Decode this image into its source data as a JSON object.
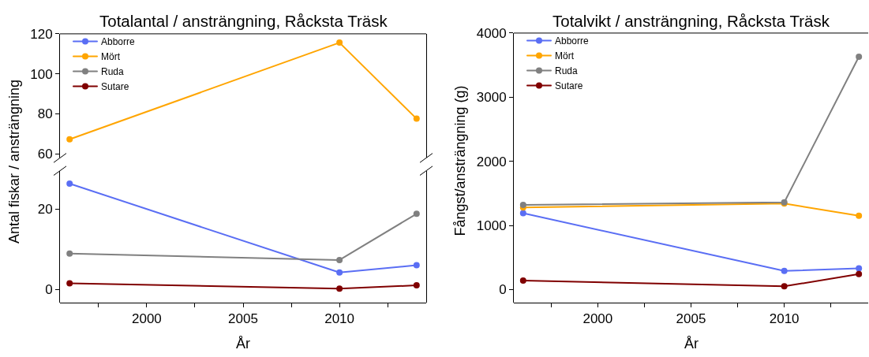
{
  "chart_data": [
    {
      "type": "line",
      "title": "Totalantal / ansträngning, Råcksta Träsk",
      "ylabel": "Antal fiskar / ansträngning",
      "x": [
        1996,
        2010,
        2014
      ],
      "series": [
        {
          "name": "Abborre",
          "color": "#5a6ef4",
          "values": [
            null,
            null,
            null
          ]
        },
        {
          "name": "Mört",
          "color": "#ffa500",
          "values": [
            67.3,
            115.6,
            77.6
          ]
        },
        {
          "name": "Ruda",
          "color": "#808080",
          "values": [
            null,
            null,
            null
          ]
        },
        {
          "name": "Sutare",
          "color": "#800000",
          "values": [
            null,
            null,
            null
          ]
        }
      ],
      "xlim": [
        1995.5,
        2014.5
      ],
      "ylim": [
        58,
        120
      ],
      "yticks": [
        60,
        80,
        100,
        120
      ],
      "tick_labels": "y",
      "legend": "top left",
      "marker": "circle",
      "line_style": "solid"
    },
    {
      "type": "line",
      "xlabel": "År",
      "x": [
        1996,
        2010,
        2014
      ],
      "series": [
        {
          "color": "#5a6ef4",
          "values": [
            26.3,
            4.2,
            6.0
          ]
        },
        {
          "color": "#808080",
          "values": [
            8.9,
            7.3,
            18.8
          ]
        },
        {
          "color": "#800000",
          "values": [
            1.5,
            0.2,
            1.0
          ]
        }
      ],
      "xlim": [
        1995.5,
        2014.5
      ],
      "xticks": [
        {
          "value": 1997.5,
          "label": null
        },
        2000,
        {
          "value": 2002.5,
          "label": null
        },
        2005,
        {
          "value": 2007.5,
          "label": null
        },
        2010,
        {
          "value": 2012.5,
          "label": null
        }
      ],
      "ylim": [
        -3.3,
        29.5
      ],
      "yticks": [
        0,
        20
      ],
      "marker": "circle",
      "line_style": "solid"
    },
    {
      "type": "line",
      "title": "Totalvikt / ansträngning, Råcksta Träsk",
      "xlabel": "År",
      "ylabel": "Fångst/ansträngning (g)",
      "x": [
        1996,
        2010,
        2014
      ],
      "series": [
        {
          "name": "Abborre",
          "color": "#5a6ef4",
          "values": [
            1190,
            290,
            330
          ]
        },
        {
          "name": "Mört",
          "color": "#ffa500",
          "values": [
            1280,
            1340,
            1150
          ]
        },
        {
          "name": "Ruda",
          "color": "#808080",
          "values": [
            1320,
            1360,
            3630
          ]
        },
        {
          "name": "Sutare",
          "color": "#800000",
          "values": [
            140,
            50,
            240
          ]
        }
      ],
      "xlim": [
        1995.5,
        2014.5
      ],
      "xticks": [
        {
          "value": 1997.5,
          "label": null
        },
        2000,
        {
          "value": 2002.5,
          "label": null
        },
        2005,
        {
          "value": 2007.5,
          "label": null
        },
        2010,
        {
          "value": 2012.5,
          "label": null
        }
      ],
      "ylim": [
        -205,
        4000
      ],
      "yticks": [
        0,
        1000,
        2000,
        3000,
        4000
      ],
      "legend": "top left",
      "marker": "circle",
      "line_style": "solid"
    }
  ]
}
